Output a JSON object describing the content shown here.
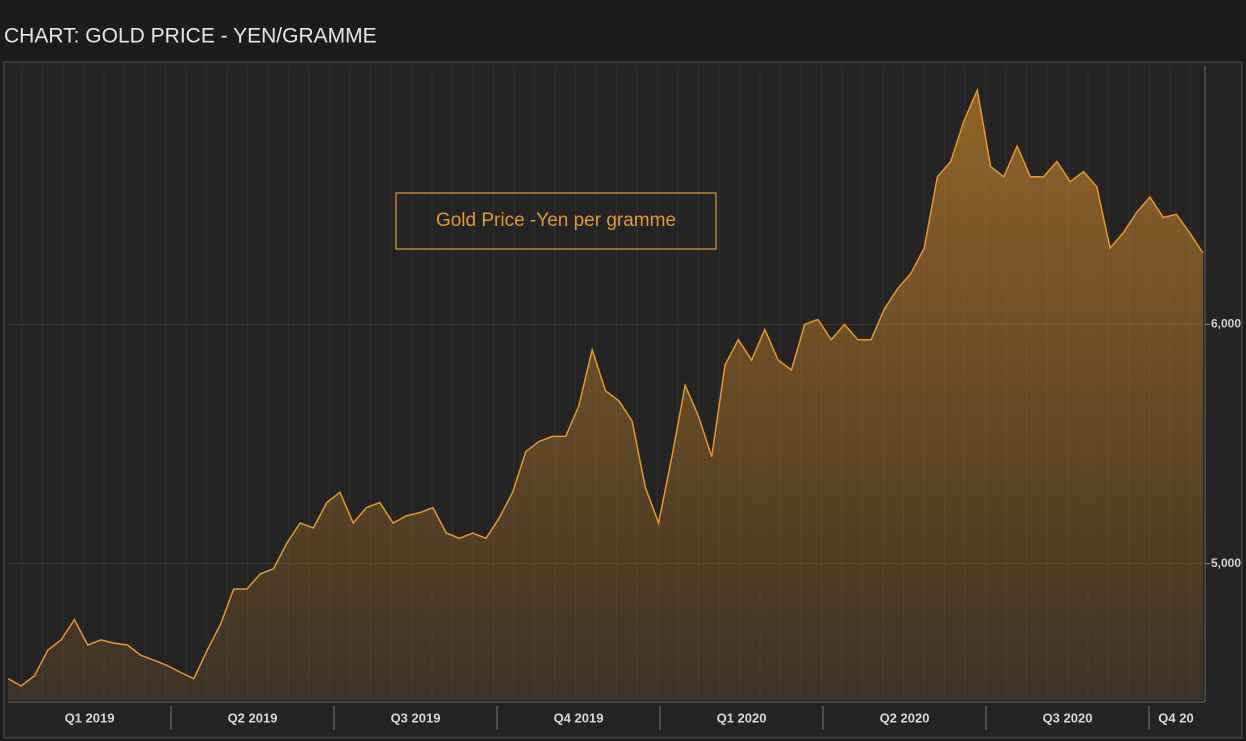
{
  "chart_data": {
    "type": "area",
    "title": "CHART: GOLD PRICE - YEN/GRAMME",
    "annotation": "Gold Price -Yen per gramme",
    "quarters": [
      "Q1 2019",
      "Q2 2019",
      "Q3 2019",
      "Q4 2019",
      "Q1 2020",
      "Q2 2020",
      "Q3 2020",
      "Q4 20"
    ],
    "color": "#e8972a",
    "values": [
      4519,
      4489,
      4532,
      4638,
      4681,
      4766,
      4660,
      4681,
      4668,
      4660,
      4617,
      4596,
      4574,
      4545,
      4519,
      4638,
      4745,
      4894,
      4894,
      4957,
      4979,
      5085,
      5170,
      5149,
      5255,
      5298,
      5170,
      5234,
      5255,
      5170,
      5200,
      5213,
      5234,
      5128,
      5106,
      5128,
      5106,
      5191,
      5298,
      5468,
      5511,
      5532,
      5532,
      5660,
      5894,
      5723,
      5681,
      5596,
      5319,
      5170,
      5447,
      5745,
      5617,
      5447,
      5830,
      5936,
      5851,
      5979,
      5851,
      5809,
      6000,
      6021,
      5936,
      6000,
      5936,
      5936,
      6064,
      6149,
      6213,
      6319,
      6617,
      6681,
      6851,
      6979,
      6660,
      6617,
      6745,
      6617,
      6617,
      6681,
      6596,
      6638,
      6575,
      6319,
      6383,
      6468,
      6532,
      6447,
      6460,
      6383,
      6298
    ],
    "ylim": [
      4430,
      7080
    ],
    "yticks": [
      {
        "value": 5000,
        "label": "5,000"
      },
      {
        "value": 6000,
        "label": "6,000"
      }
    ],
    "grid": true
  }
}
